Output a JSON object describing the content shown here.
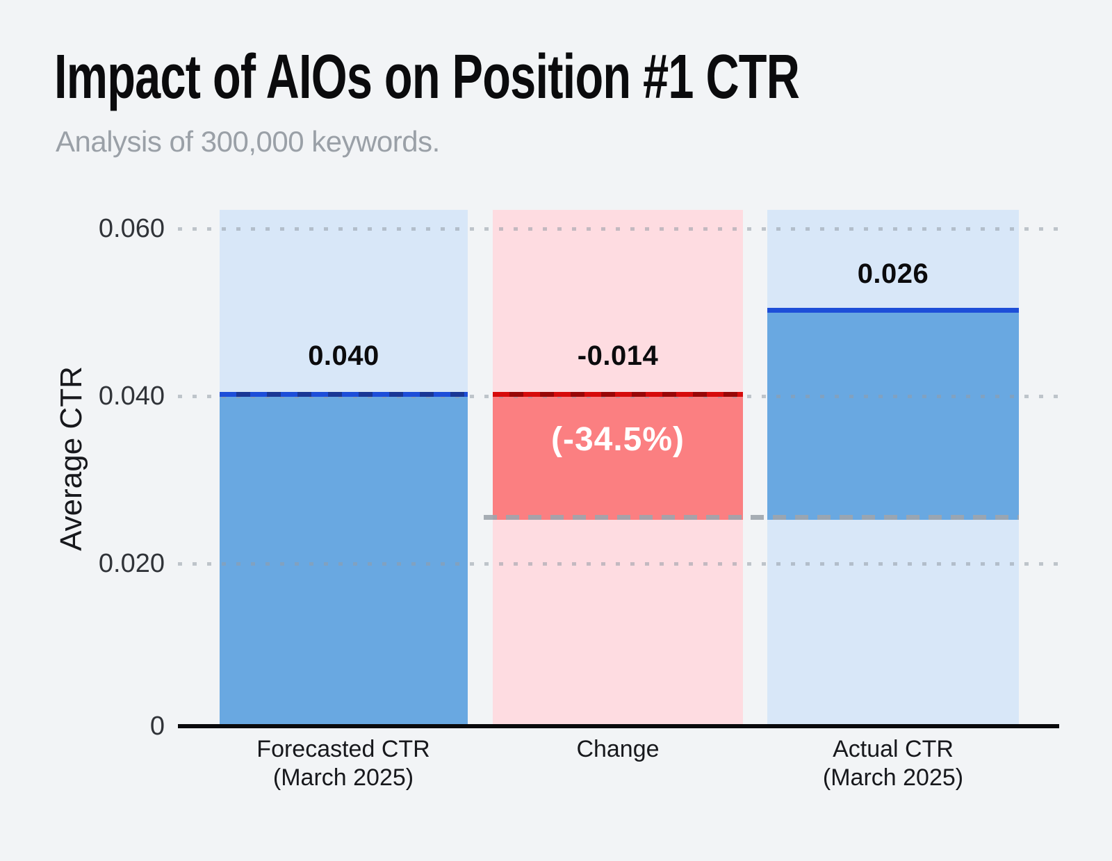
{
  "header": {
    "title": "Impact of AIOs on Position #1 CTR",
    "subtitle": "Analysis of 300,000 keywords."
  },
  "axis": {
    "y_title": "Average CTR",
    "yticks": [
      "0.060",
      "0.040",
      "0.020",
      "0"
    ]
  },
  "bars": [
    {
      "label": "0.040",
      "x_line1": "Forecasted CTR",
      "x_line2": "(March 2025)"
    },
    {
      "label": "-0.014",
      "pct": "(-34.5%)",
      "x_line1": "Change",
      "x_line2": ""
    },
    {
      "label": "0.026",
      "x_line1": "Actual CTR",
      "x_line2": "(March 2025)"
    }
  ],
  "colors": {
    "background": "#f2f4f6",
    "light_blue_column": "#d8e7f8",
    "solid_blue_fill": "#69a8e1",
    "blue_marker_line": "#1d4ed8",
    "blue_marker_dash_dark": "#1a3795",
    "light_pink_column": "#fedce1",
    "solid_red_fill": "#fb7f81",
    "red_marker_line": "#d60b0b",
    "red_marker_dash_dark": "#970707",
    "gray_connector": "#9ea5ad",
    "gridline_dots": "#949ca6",
    "axis_line": "#0a0a0c",
    "title_text": "#0b0b0d",
    "subtitle_text": "#9aa0a7"
  },
  "chart_data": {
    "type": "bar",
    "subtype": "waterfall",
    "title": "Impact of AIOs on Position #1 CTR",
    "subtitle": "Analysis of 300,000 keywords.",
    "xlabel": "",
    "ylabel": "Average CTR",
    "categories": [
      "Forecasted CTR (March 2025)",
      "Change",
      "Actual CTR (March 2025)"
    ],
    "values": [
      0.04,
      -0.014,
      0.026
    ],
    "bar_labels": [
      "0.040",
      "-0.014",
      "0.026"
    ],
    "change_percent_label": "(-34.5%)",
    "yticks": [
      0,
      0.02,
      0.04,
      0.06
    ],
    "ytick_labels": [
      "0",
      "0.020",
      "0.040",
      "0.060"
    ],
    "ylim": [
      0,
      0.062
    ],
    "grid": "horizontal dotted lines at 0.020, 0.040, 0.060",
    "legend": "none",
    "connector_level": 0.026,
    "bar_segments": [
      {
        "category": "Forecasted CTR (March 2025)",
        "solid_from": 0.0,
        "solid_to": 0.04,
        "top_line_style": "dashed blue",
        "column_tint": "light blue"
      },
      {
        "category": "Change",
        "solid_from": 0.026,
        "solid_to": 0.04,
        "top_line_style": "dashed dark red",
        "column_tint": "light pink"
      },
      {
        "category": "Actual CTR (March 2025)",
        "solid_from": 0.026,
        "solid_to": 0.05,
        "top_line_style": "solid blue",
        "column_tint": "light blue"
      }
    ]
  }
}
